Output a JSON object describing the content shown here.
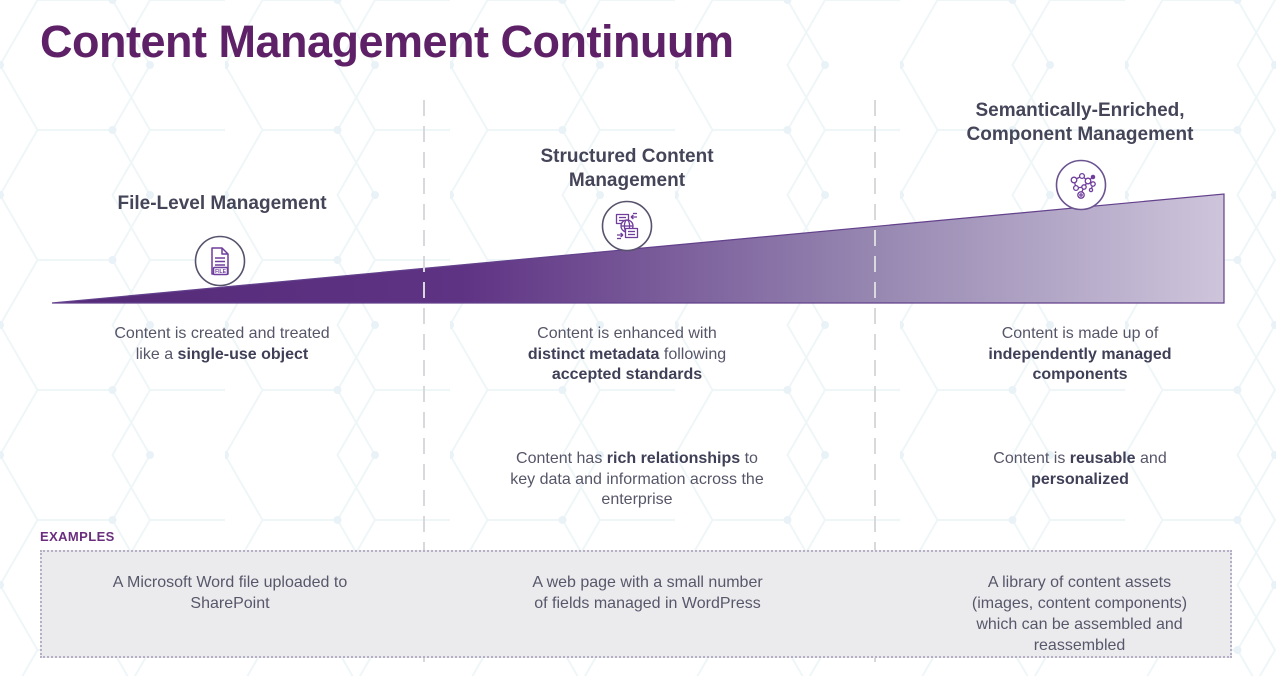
{
  "title": "Content Management Continuum",
  "examples_label": "EXAMPLES",
  "colors": {
    "title": "#5E2167",
    "heading": "#454559",
    "body": "#565669",
    "body_bold": "#3F3F57",
    "wedge_dark": "#542A78",
    "wedge_light": "#CEC5DB",
    "divider": "#D8D8DD",
    "example_bg": "#EBEBED",
    "example_border": "#B6B0C6",
    "examples_label": "#6B2E7E",
    "icon_glyph": "#6F3D9C",
    "icon_circle": "#57536C"
  },
  "columns": [
    {
      "heading": "File-Level Management",
      "icon": "file-icon",
      "row1": [
        {
          "text": "Content is created and treated"
        },
        {
          "br": true
        },
        {
          "text": "like a "
        },
        {
          "text": "single-use object",
          "bold": true
        }
      ],
      "row2": [],
      "example": [
        {
          "text": "A Microsoft Word file uploaded to"
        },
        {
          "br": true
        },
        {
          "text": "SharePoint"
        }
      ]
    },
    {
      "heading": "Structured Content\nManagement",
      "icon": "structured-content-icon",
      "row1": [
        {
          "text": "Content is enhanced with"
        },
        {
          "br": true
        },
        {
          "text": "distinct metadata",
          "bold": true
        },
        {
          "text": " following"
        },
        {
          "br": true
        },
        {
          "text": "accepted standards",
          "bold": true
        }
      ],
      "row2": [
        {
          "text": "Content has "
        },
        {
          "text": "rich relationships",
          "bold": true
        },
        {
          "text": " to"
        },
        {
          "br": true
        },
        {
          "text": "key data and information across the"
        },
        {
          "br": true
        },
        {
          "text": "enterprise"
        }
      ],
      "example": [
        {
          "text": "A web page with a small number"
        },
        {
          "br": true
        },
        {
          "text": "of fields managed in WordPress"
        }
      ]
    },
    {
      "heading": "Semantically-Enriched,\nComponent Management",
      "icon": "semantic-network-icon",
      "row1": [
        {
          "text": "Content is made up of"
        },
        {
          "br": true
        },
        {
          "text": "independently managed",
          "bold": true
        },
        {
          "br": true
        },
        {
          "text": "components",
          "bold": true
        }
      ],
      "row2": [
        {
          "text": "Content is "
        },
        {
          "text": "reusable",
          "bold": true
        },
        {
          "text": " and"
        },
        {
          "br": true
        },
        {
          "text": "personalized",
          "bold": true
        }
      ],
      "example": [
        {
          "text": "A library of content assets"
        },
        {
          "br": true
        },
        {
          "text": "(images, content components)"
        },
        {
          "br": true
        },
        {
          "text": "which can be assembled and"
        },
        {
          "br": true
        },
        {
          "text": "reassembled"
        }
      ]
    }
  ]
}
